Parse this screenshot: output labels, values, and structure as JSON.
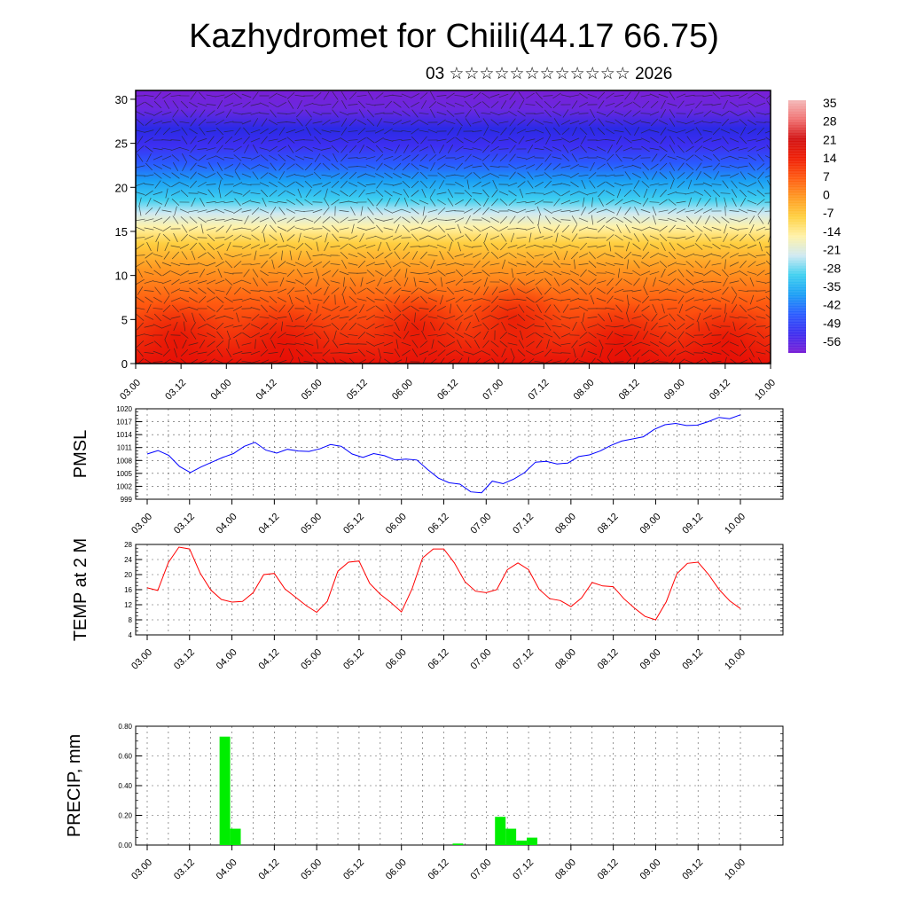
{
  "title": "Kazhydromet for Chiili(44.17 66.75)",
  "subtitle": "03 ☆☆☆☆☆☆☆☆☆☆☆☆ 2026",
  "chart_data": [
    {
      "type": "heatmap",
      "title": "",
      "ylim": [
        0,
        31
      ],
      "yticks": [
        0,
        5,
        10,
        15,
        20,
        25,
        30
      ],
      "x_tick_labels": [
        "03.00",
        "03.12",
        "04.00",
        "04.12",
        "05.00",
        "05.12",
        "06.00",
        "06.12",
        "07.00",
        "07.12",
        "08.00",
        "08.12",
        "09.00",
        "09.12",
        "10.00"
      ],
      "colorbar_labels": [
        "35",
        "28",
        "21",
        "14",
        "7",
        "0",
        "-7",
        "-14",
        "-21",
        "-28",
        "-35",
        "-42",
        "-49",
        "-56"
      ],
      "colors": [
        "#7a1fd6",
        "#3d2ef0",
        "#2a5cff",
        "#1b9ff5",
        "#3fd0f0",
        "#cfe9f2",
        "#fff2a8",
        "#ffd040",
        "#ff9a22",
        "#ff5a10",
        "#f01e05",
        "#d21212",
        "#f07070",
        "#f4b8b8"
      ],
      "overlay": "wind-barbs"
    },
    {
      "type": "line",
      "ylabel": "PMSL",
      "ylim": [
        999,
        1020
      ],
      "yticks": [
        999,
        1002,
        1005,
        1008,
        1011,
        1014,
        1017,
        1020
      ],
      "x_tick_labels": [
        "03.00",
        "03.12",
        "04.00",
        "04.12",
        "05.00",
        "05.12",
        "06.00",
        "06.12",
        "07.00",
        "07.12",
        "08.00",
        "08.12",
        "09.00",
        "09.12",
        "10.00"
      ],
      "color": "#0000ff",
      "values": [
        1009.5,
        1010.3,
        1009.2,
        1006.6,
        1005.2,
        1006.5,
        1007.6,
        1008.7,
        1009.6,
        1011.3,
        1012.2,
        1010.4,
        1009.7,
        1010.6,
        1010.2,
        1010.1,
        1010.7,
        1011.7,
        1011.3,
        1009.5,
        1008.7,
        1009.6,
        1009.1,
        1008.1,
        1008.3,
        1008.1,
        1005.9,
        1003.9,
        1002.8,
        1002.5,
        1000.7,
        1000.5,
        1003.2,
        1002.6,
        1003.7,
        1005.2,
        1007.6,
        1007.8,
        1007.2,
        1007.4,
        1008.9,
        1009.3,
        1010.2,
        1011.5,
        1012.5,
        1013.0,
        1013.5,
        1015.2,
        1016.3,
        1016.6,
        1016.1,
        1016.2,
        1017.0,
        1018.0,
        1017.7,
        1018.6
      ]
    },
    {
      "type": "line",
      "ylabel": "TEMP at 2 M",
      "ylim": [
        4,
        28
      ],
      "yticks": [
        4,
        8,
        12,
        16,
        20,
        24,
        28
      ],
      "x_tick_labels": [
        "03.00",
        "03.12",
        "04.00",
        "04.12",
        "05.00",
        "05.12",
        "06.00",
        "06.12",
        "07.00",
        "07.12",
        "08.00",
        "08.12",
        "09.00",
        "09.12",
        "10.00"
      ],
      "color": "#ff0000",
      "values": [
        16.5,
        15.8,
        23.2,
        27.3,
        26.8,
        20.4,
        15.9,
        13.4,
        12.7,
        12.9,
        15.2,
        20.0,
        20.3,
        16.2,
        14.0,
        11.8,
        10.0,
        12.9,
        20.9,
        23.3,
        23.6,
        17.7,
        14.8,
        12.6,
        10.1,
        16.2,
        24.4,
        26.8,
        26.8,
        23.1,
        18.1,
        15.6,
        15.2,
        16.0,
        21.3,
        23.1,
        21.3,
        16.1,
        13.6,
        13.1,
        11.5,
        13.8,
        17.9,
        17.0,
        16.8,
        13.6,
        11.1,
        8.9,
        8.0,
        12.8,
        20.2,
        23.0,
        23.3,
        20.0,
        16.0,
        13.0,
        11.0
      ]
    },
    {
      "type": "bar",
      "ylabel": "PRECIP, mm",
      "ylim": [
        0,
        0.8
      ],
      "yticks": [
        "0.00",
        "0.20",
        "0.40",
        "0.60",
        "0.80"
      ],
      "x_tick_labels": [
        "03.00",
        "03.12",
        "04.00",
        "04.12",
        "05.00",
        "05.12",
        "06.00",
        "06.12",
        "07.00",
        "07.12",
        "08.00",
        "08.12",
        "09.00",
        "09.12",
        "10.00"
      ],
      "color": "#00ee00",
      "bars": [
        {
          "x": 7.5,
          "value": 0.73
        },
        {
          "x": 8.5,
          "value": 0.11
        },
        {
          "x": 29.5,
          "value": 0.01
        },
        {
          "x": 33.5,
          "value": 0.19
        },
        {
          "x": 34.5,
          "value": 0.11
        },
        {
          "x": 35.5,
          "value": 0.03
        },
        {
          "x": 36.5,
          "value": 0.05
        }
      ]
    }
  ]
}
